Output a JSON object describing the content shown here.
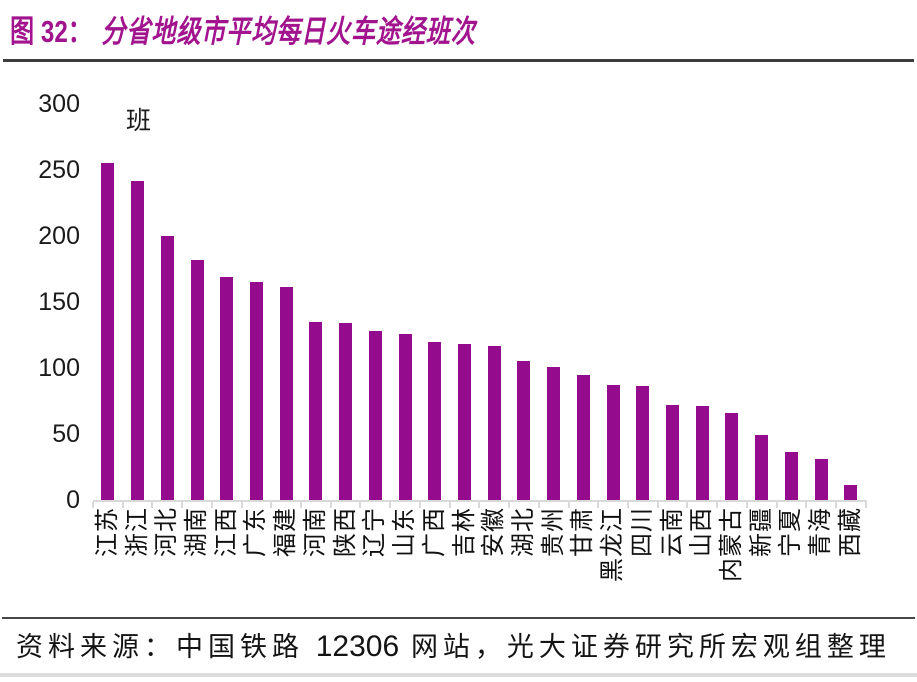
{
  "title": {
    "prefix": "图 32：",
    "text": "分省地级市平均每日火车途经班次",
    "color": "#a1148e"
  },
  "chart_data": {
    "type": "bar",
    "title": "分省地级市平均每日火车途经班次",
    "unit_label": "班",
    "categories": [
      "江苏",
      "浙江",
      "河北",
      "湖南",
      "江西",
      "广东",
      "福建",
      "河南",
      "陕西",
      "辽宁",
      "山东",
      "广西",
      "吉林",
      "安徽",
      "湖北",
      "贵州",
      "甘肃",
      "黑龙江",
      "四川",
      "云南",
      "山西",
      "内蒙古",
      "新疆",
      "宁夏",
      "青海",
      "西藏"
    ],
    "values": [
      255,
      242,
      200,
      182,
      169,
      165,
      161,
      135,
      134,
      128,
      126,
      120,
      118,
      117,
      105,
      101,
      95,
      87,
      86,
      72,
      71,
      66,
      49,
      36,
      31,
      11
    ],
    "ylim": [
      0,
      300
    ],
    "yticks": [
      0,
      50,
      100,
      150,
      200,
      250,
      300
    ],
    "bar_color": "#940b8e",
    "axis_color": "#d9d9d9",
    "grid": false,
    "legend": "none"
  },
  "footer": {
    "source_prefix": "资料来源：中国铁路 ",
    "source_number": "12306",
    "source_suffix": " 网站，光大证券研究所宏观组整理"
  }
}
